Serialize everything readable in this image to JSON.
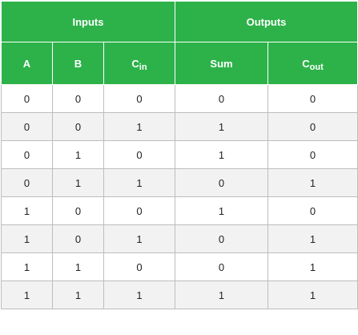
{
  "table": {
    "groups": [
      "Inputs",
      "Outputs"
    ],
    "columns": [
      {
        "base": "A",
        "sub": ""
      },
      {
        "base": "B",
        "sub": ""
      },
      {
        "base": "C",
        "sub": "in"
      },
      {
        "base": "Sum",
        "sub": ""
      },
      {
        "base": "C",
        "sub": "out"
      }
    ],
    "rows": [
      [
        "0",
        "0",
        "0",
        "0",
        "0"
      ],
      [
        "0",
        "0",
        "1",
        "1",
        "0"
      ],
      [
        "0",
        "1",
        "0",
        "1",
        "0"
      ],
      [
        "0",
        "1",
        "1",
        "0",
        "1"
      ],
      [
        "1",
        "0",
        "0",
        "1",
        "0"
      ],
      [
        "1",
        "0",
        "1",
        "0",
        "1"
      ],
      [
        "1",
        "1",
        "0",
        "0",
        "1"
      ],
      [
        "1",
        "1",
        "1",
        "1",
        "1"
      ]
    ]
  },
  "colors": {
    "header_bg": "#2db24a",
    "header_text": "#ffffff",
    "stripe": "#f2f2f2",
    "border": "#bdbdbd"
  }
}
